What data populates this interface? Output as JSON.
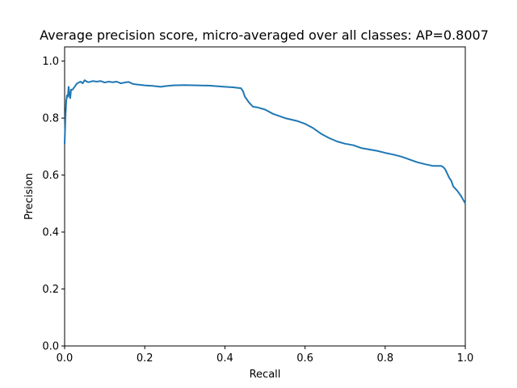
{
  "chart_data": {
    "type": "line",
    "title": "Average precision score, micro-averaged over all classes: AP=0.8007",
    "xlabel": "Recall",
    "ylabel": "Precision",
    "xlim": [
      0.0,
      1.0
    ],
    "ylim": [
      0.0,
      1.05
    ],
    "xticks": [
      0.0,
      0.2,
      0.4,
      0.6,
      0.8,
      1.0
    ],
    "xtick_labels": [
      "0.0",
      "0.2",
      "0.4",
      "0.6",
      "0.8",
      "1.0"
    ],
    "yticks": [
      0.0,
      0.2,
      0.4,
      0.6,
      0.8,
      1.0
    ],
    "ytick_labels": [
      "0.0",
      "0.2",
      "0.4",
      "0.6",
      "0.8",
      "1.0"
    ],
    "grid": false,
    "series": [
      {
        "color": "#1f77b4",
        "x": [
          0.0,
          0.002,
          0.004,
          0.006,
          0.008,
          0.01,
          0.012,
          0.014,
          0.016,
          0.02,
          0.025,
          0.03,
          0.035,
          0.04,
          0.045,
          0.05,
          0.055,
          0.06,
          0.07,
          0.08,
          0.09,
          0.1,
          0.11,
          0.12,
          0.13,
          0.14,
          0.15,
          0.16,
          0.17,
          0.18,
          0.2,
          0.22,
          0.24,
          0.25,
          0.27,
          0.3,
          0.33,
          0.36,
          0.38,
          0.4,
          0.42,
          0.44,
          0.445,
          0.45,
          0.455,
          0.46,
          0.47,
          0.48,
          0.5,
          0.52,
          0.55,
          0.58,
          0.6,
          0.62,
          0.64,
          0.66,
          0.68,
          0.7,
          0.72,
          0.74,
          0.76,
          0.78,
          0.8,
          0.82,
          0.84,
          0.86,
          0.88,
          0.9,
          0.92,
          0.94,
          0.945,
          0.95,
          0.955,
          0.96,
          0.965,
          0.97,
          0.98,
          0.99,
          1.0
        ],
        "values": [
          0.71,
          0.8,
          0.86,
          0.88,
          0.875,
          0.91,
          0.88,
          0.87,
          0.9,
          0.9,
          0.91,
          0.92,
          0.925,
          0.928,
          0.922,
          0.933,
          0.928,
          0.926,
          0.93,
          0.928,
          0.93,
          0.925,
          0.928,
          0.926,
          0.928,
          0.922,
          0.925,
          0.927,
          0.92,
          0.918,
          0.915,
          0.913,
          0.91,
          0.912,
          0.915,
          0.916,
          0.915,
          0.914,
          0.912,
          0.91,
          0.908,
          0.905,
          0.895,
          0.875,
          0.865,
          0.855,
          0.84,
          0.838,
          0.83,
          0.815,
          0.8,
          0.79,
          0.78,
          0.765,
          0.745,
          0.73,
          0.718,
          0.71,
          0.705,
          0.695,
          0.69,
          0.685,
          0.678,
          0.672,
          0.665,
          0.655,
          0.645,
          0.638,
          0.632,
          0.632,
          0.628,
          0.62,
          0.605,
          0.59,
          0.58,
          0.56,
          0.545,
          0.525,
          0.5
        ]
      }
    ]
  }
}
